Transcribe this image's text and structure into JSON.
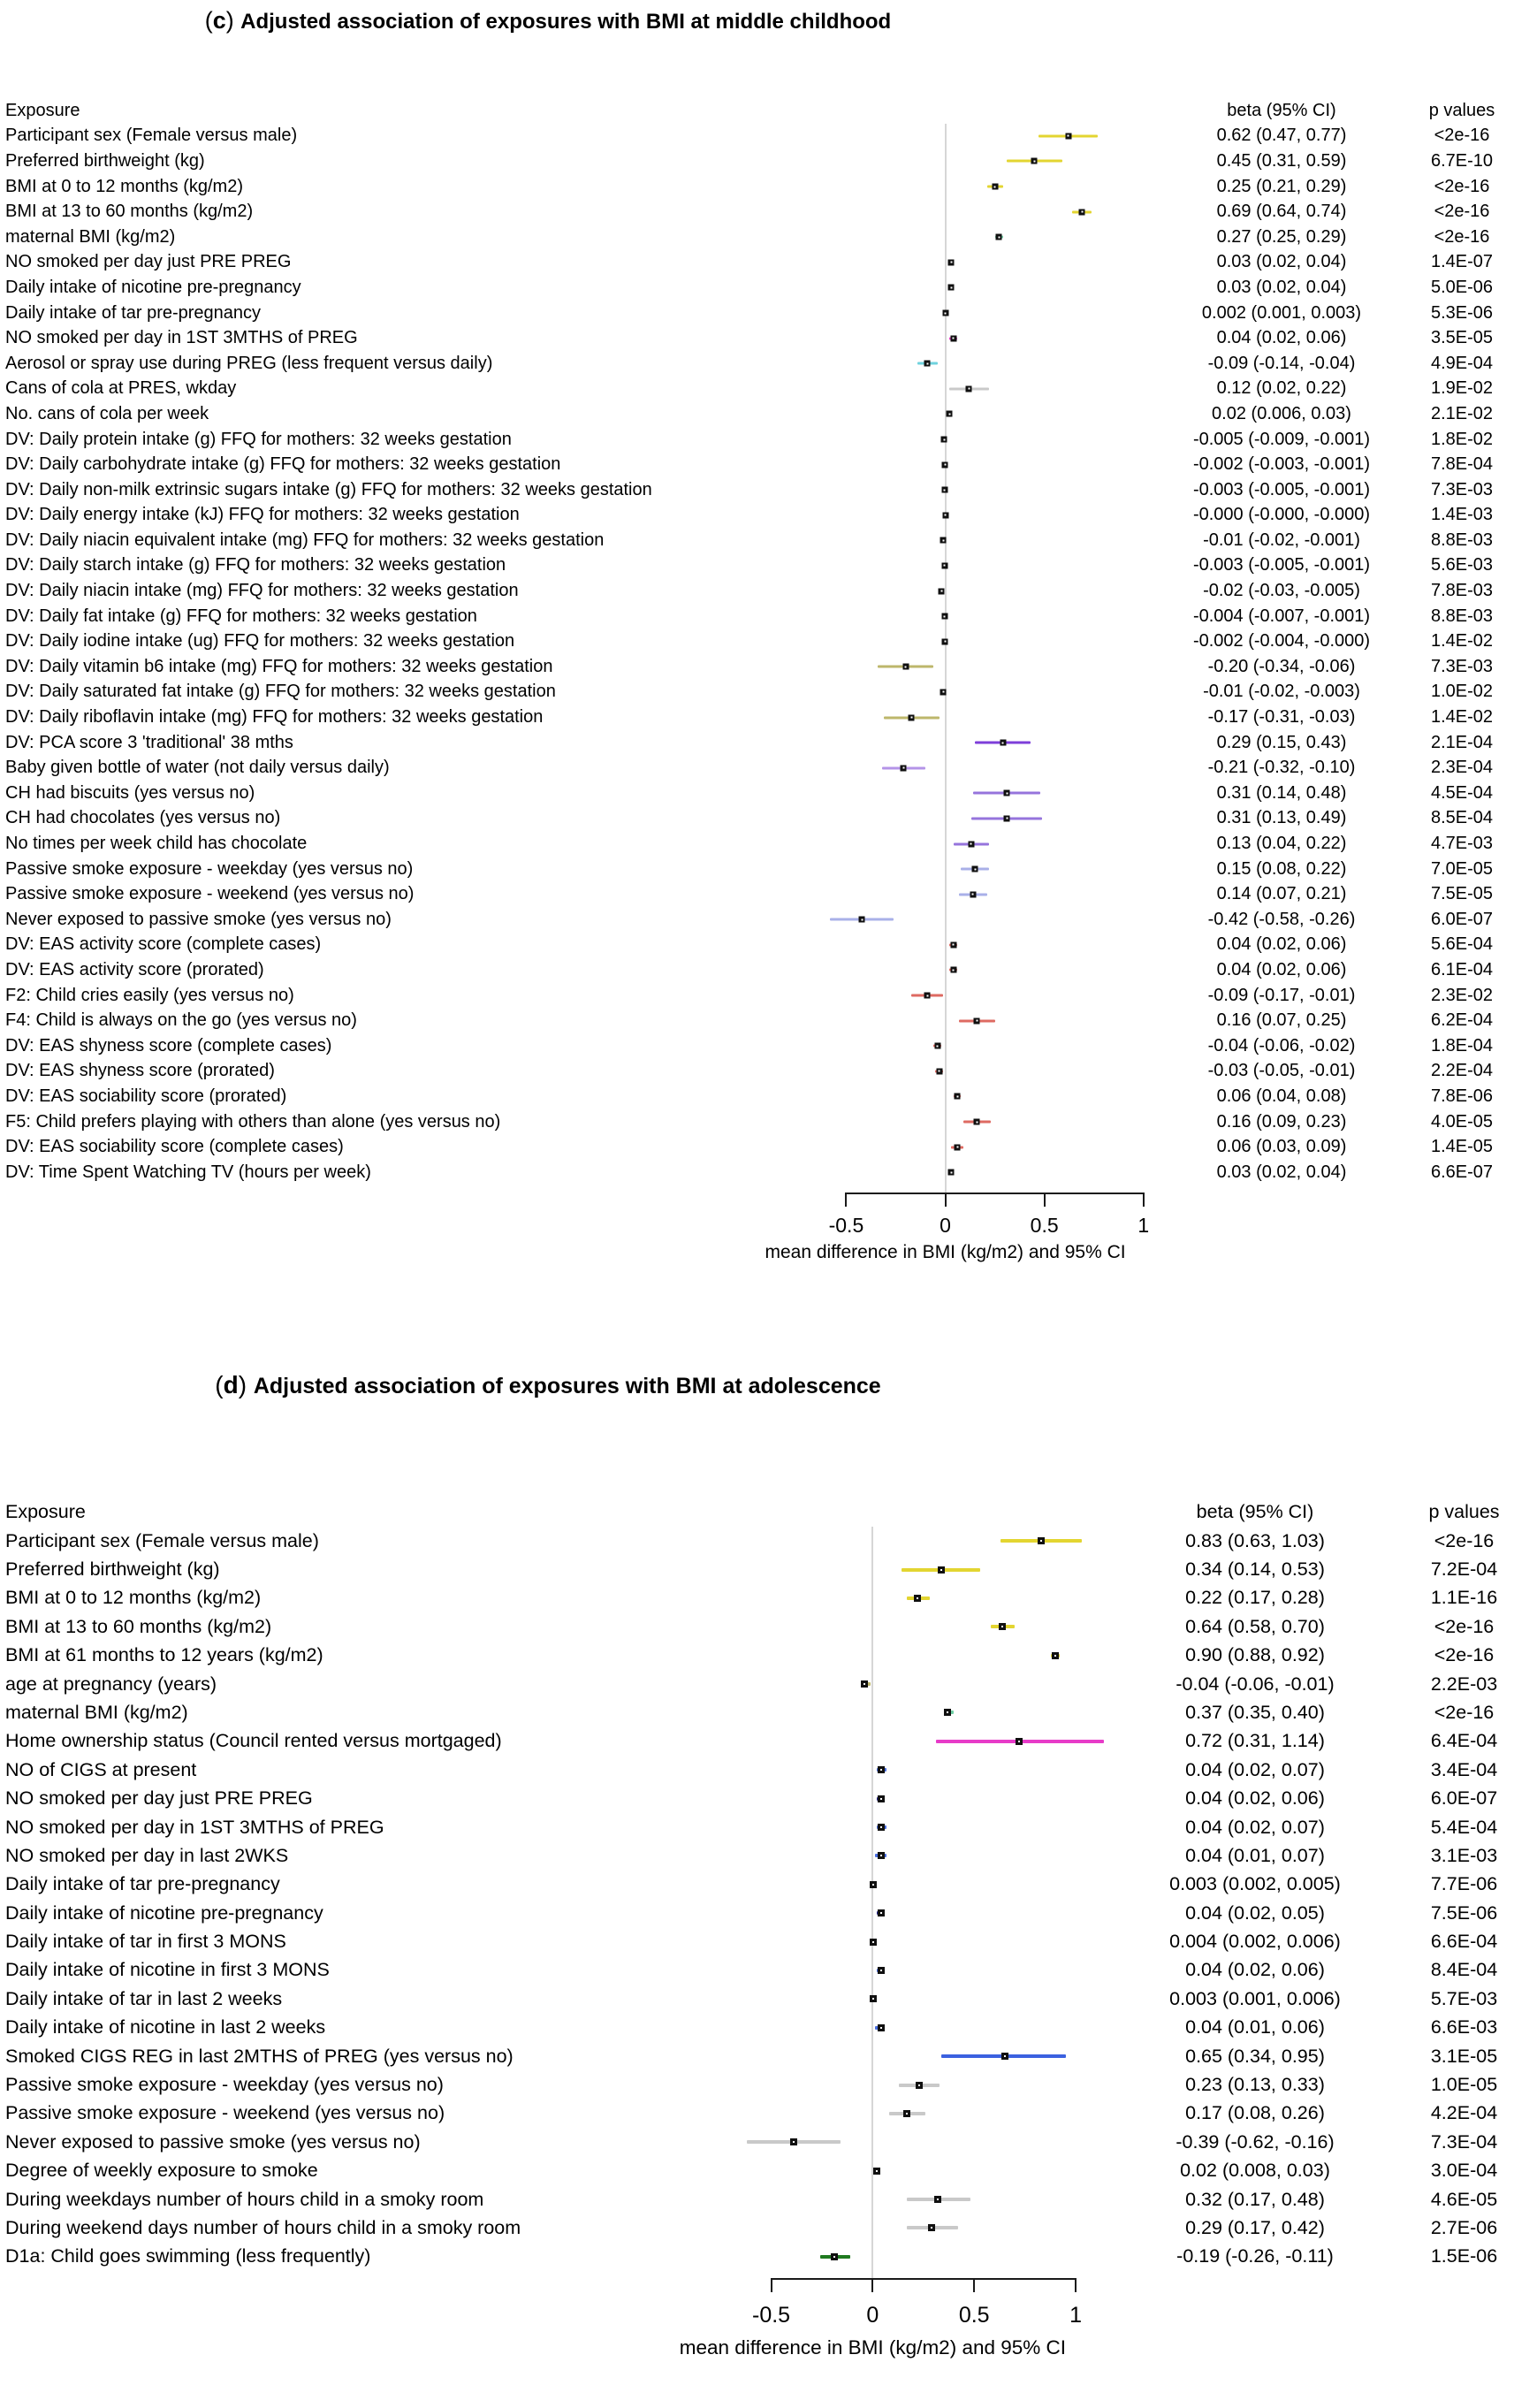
{
  "chart_data": [
    {
      "type": "scatter",
      "subtype": "forest-plot",
      "tag": "c",
      "title": "Adjusted association of exposures with BMI at middle childhood",
      "columns": {
        "exposure": "Exposure",
        "beta": "beta (95% CI)",
        "p": "p values"
      },
      "axis": {
        "xmin": -0.6,
        "xmax": 1.05,
        "ticks": [
          -0.5,
          0,
          0.5,
          1
        ],
        "tick_labels": [
          "-0.5",
          "0",
          "0.5",
          "1"
        ],
        "line_from": -0.5,
        "line_to": 1.0,
        "label": "mean difference in BMI (kg/m2) and 95% CI",
        "grid": false
      },
      "rows": [
        {
          "exposure": "Participant sex (Female versus male)",
          "beta": 0.62,
          "lo": 0.47,
          "hi": 0.77,
          "beta_text": "0.62 (0.47, 0.77)",
          "p": "<2e-16",
          "color": "#e3d531"
        },
        {
          "exposure": "Preferred birthweight (kg)",
          "beta": 0.45,
          "lo": 0.31,
          "hi": 0.59,
          "beta_text": "0.45 (0.31, 0.59)",
          "p": "6.7E-10",
          "color": "#e3d531"
        },
        {
          "exposure": "BMI at 0 to 12 months (kg/m2)",
          "beta": 0.25,
          "lo": 0.21,
          "hi": 0.29,
          "beta_text": "0.25 (0.21, 0.29)",
          "p": "<2e-16",
          "color": "#e3d531"
        },
        {
          "exposure": "BMI at 13 to 60 months (kg/m2)",
          "beta": 0.69,
          "lo": 0.64,
          "hi": 0.74,
          "beta_text": "0.69 (0.64, 0.74)",
          "p": "<2e-16",
          "color": "#e3d531"
        },
        {
          "exposure": "maternal BMI (kg/m2)",
          "beta": 0.27,
          "lo": 0.25,
          "hi": 0.29,
          "beta_text": "0.27 (0.25, 0.29)",
          "p": "<2e-16",
          "color": "#6ecfa4"
        },
        {
          "exposure": "NO smoked per day just PRE PREG",
          "beta": 0.03,
          "lo": 0.02,
          "hi": 0.04,
          "beta_text": "0.03 (0.02, 0.04)",
          "p": "1.4E-07",
          "color": "#e73bc8"
        },
        {
          "exposure": "Daily intake of nicotine pre-pregnancy",
          "beta": 0.03,
          "lo": 0.02,
          "hi": 0.04,
          "beta_text": "0.03 (0.02, 0.04)",
          "p": "5.0E-06",
          "color": "#e73bc8"
        },
        {
          "exposure": "Daily intake of tar pre-pregnancy",
          "beta": 0.002,
          "lo": 0.001,
          "hi": 0.003,
          "beta_text": "0.002 (0.001, 0.003)",
          "p": "5.3E-06",
          "color": "#141414"
        },
        {
          "exposure": "NO smoked per day in 1ST 3MTHS of PREG",
          "beta": 0.04,
          "lo": 0.02,
          "hi": 0.06,
          "beta_text": "0.04 (0.02, 0.06)",
          "p": "3.5E-05",
          "color": "#e73bc8"
        },
        {
          "exposure": "Aerosol or spray use during PREG (less frequent versus daily)",
          "beta": -0.09,
          "lo": -0.14,
          "hi": -0.04,
          "beta_text": "-0.09 (-0.14, -0.04)",
          "p": "4.9E-04",
          "color": "#6fd2de"
        },
        {
          "exposure": "Cans of cola at PRES, wkday",
          "beta": 0.12,
          "lo": 0.02,
          "hi": 0.22,
          "beta_text": "0.12 (0.02, 0.22)",
          "p": "1.9E-02",
          "color": "#c9c9c9"
        },
        {
          "exposure": "No. cans of cola per week",
          "beta": 0.02,
          "lo": 0.006,
          "hi": 0.03,
          "beta_text": "0.02 (0.006, 0.03)",
          "p": "2.1E-02",
          "color": "#141414"
        },
        {
          "exposure": "DV: Daily protein intake (g) FFQ for mothers: 32 weeks gestation",
          "beta": -0.005,
          "lo": -0.009,
          "hi": -0.001,
          "beta_text": "-0.005 (-0.009, -0.001)",
          "p": "1.8E-02",
          "color": "#141414"
        },
        {
          "exposure": "DV: Daily carbohydrate intake (g) FFQ for mothers: 32 weeks gestation",
          "beta": -0.002,
          "lo": -0.003,
          "hi": -0.001,
          "beta_text": "-0.002 (-0.003, -0.001)",
          "p": "7.8E-04",
          "color": "#141414"
        },
        {
          "exposure": "DV: Daily non-milk extrinsic sugars intake (g) FFQ for mothers: 32 weeks gestation",
          "beta": -0.003,
          "lo": -0.005,
          "hi": -0.001,
          "beta_text": "-0.003 (-0.005, -0.001)",
          "p": "7.3E-03",
          "color": "#141414"
        },
        {
          "exposure": "DV: Daily energy intake (kJ) FFQ for mothers: 32 weeks gestation",
          "beta": 0,
          "lo": 0,
          "hi": 0,
          "beta_text": "-0.000 (-0.000, -0.000)",
          "p": "1.4E-03",
          "color": "#141414"
        },
        {
          "exposure": "DV: Daily niacin equivalent intake (mg) FFQ for mothers: 32 weeks gestation",
          "beta": -0.01,
          "lo": -0.02,
          "hi": -0.001,
          "beta_text": "-0.01 (-0.02, -0.001)",
          "p": "8.8E-03",
          "color": "#141414"
        },
        {
          "exposure": "DV: Daily starch intake (g) FFQ for mothers: 32 weeks gestation",
          "beta": -0.003,
          "lo": -0.005,
          "hi": -0.001,
          "beta_text": "-0.003 (-0.005, -0.001)",
          "p": "5.6E-03",
          "color": "#141414"
        },
        {
          "exposure": "DV: Daily niacin intake (mg) FFQ for mothers: 32 weeks gestation",
          "beta": -0.02,
          "lo": -0.03,
          "hi": -0.005,
          "beta_text": "-0.02 (-0.03, -0.005)",
          "p": "7.8E-03",
          "color": "#141414"
        },
        {
          "exposure": "DV: Daily fat intake (g) FFQ for mothers: 32 weeks gestation",
          "beta": -0.004,
          "lo": -0.007,
          "hi": -0.001,
          "beta_text": "-0.004 (-0.007, -0.001)",
          "p": "8.8E-03",
          "color": "#141414"
        },
        {
          "exposure": "DV: Daily iodine intake (ug) FFQ for mothers: 32 weeks gestation",
          "beta": -0.002,
          "lo": -0.004,
          "hi": 0,
          "beta_text": "-0.002 (-0.004, -0.000)",
          "p": "1.4E-02",
          "color": "#141414"
        },
        {
          "exposure": "DV: Daily vitamin b6 intake (mg) FFQ for mothers: 32 weeks gestation",
          "beta": -0.2,
          "lo": -0.34,
          "hi": -0.06,
          "beta_text": "-0.20 (-0.34, -0.06)",
          "p": "7.3E-03",
          "color": "#bdb76b"
        },
        {
          "exposure": "DV: Daily saturated fat intake (g) FFQ for mothers: 32 weeks gestation",
          "beta": -0.01,
          "lo": -0.02,
          "hi": -0.003,
          "beta_text": "-0.01 (-0.02, -0.003)",
          "p": "1.0E-02",
          "color": "#141414"
        },
        {
          "exposure": "DV: Daily riboflavin intake (mg) FFQ for mothers: 32 weeks gestation",
          "beta": -0.17,
          "lo": -0.31,
          "hi": -0.03,
          "beta_text": "-0.17 (-0.31, -0.03)",
          "p": "1.4E-02",
          "color": "#bdb76b"
        },
        {
          "exposure": "DV: PCA score 3 'traditional' 38 mths",
          "beta": 0.29,
          "lo": 0.15,
          "hi": 0.43,
          "beta_text": "0.29 (0.15, 0.43)",
          "p": "2.1E-04",
          "color": "#7e3ed9"
        },
        {
          "exposure": "Baby given bottle of water (not daily versus daily)",
          "beta": -0.21,
          "lo": -0.32,
          "hi": -0.1,
          "beta_text": "-0.21 (-0.32, -0.10)",
          "p": "2.3E-04",
          "color": "#b494e8"
        },
        {
          "exposure": "CH had biscuits (yes versus no)",
          "beta": 0.31,
          "lo": 0.14,
          "hi": 0.48,
          "beta_text": "0.31 (0.14, 0.48)",
          "p": "4.5E-04",
          "color": "#9674dc"
        },
        {
          "exposure": "CH had chocolates (yes versus no)",
          "beta": 0.31,
          "lo": 0.13,
          "hi": 0.49,
          "beta_text": "0.31 (0.13, 0.49)",
          "p": "8.5E-04",
          "color": "#9674dc"
        },
        {
          "exposure": "No times per week child has chocolate",
          "beta": 0.13,
          "lo": 0.04,
          "hi": 0.22,
          "beta_text": "0.13 (0.04, 0.22)",
          "p": "4.7E-03",
          "color": "#9674dc"
        },
        {
          "exposure": "Passive smoke exposure - weekday (yes versus no)",
          "beta": 0.15,
          "lo": 0.08,
          "hi": 0.22,
          "beta_text": "0.15 (0.08, 0.22)",
          "p": "7.0E-05",
          "color": "#a9b0e8"
        },
        {
          "exposure": "Passive smoke exposure - weekend (yes versus no)",
          "beta": 0.14,
          "lo": 0.07,
          "hi": 0.21,
          "beta_text": "0.14 (0.07, 0.21)",
          "p": "7.5E-05",
          "color": "#a9b0e8"
        },
        {
          "exposure": "Never exposed to passive smoke (yes versus no)",
          "beta": -0.42,
          "lo": -0.58,
          "hi": -0.26,
          "beta_text": "-0.42 (-0.58, -0.26)",
          "p": "6.0E-07",
          "color": "#a9b0e8"
        },
        {
          "exposure": "DV: EAS activity score (complete cases)",
          "beta": 0.04,
          "lo": 0.02,
          "hi": 0.06,
          "beta_text": "0.04 (0.02, 0.06)",
          "p": "5.6E-04",
          "color": "#de6a62"
        },
        {
          "exposure": "DV: EAS activity score (prorated)",
          "beta": 0.04,
          "lo": 0.02,
          "hi": 0.06,
          "beta_text": "0.04 (0.02, 0.06)",
          "p": "6.1E-04",
          "color": "#de6a62"
        },
        {
          "exposure": "F2: Child cries easily (yes versus no)",
          "beta": -0.09,
          "lo": -0.17,
          "hi": -0.01,
          "beta_text": "-0.09 (-0.17, -0.01)",
          "p": "2.3E-02",
          "color": "#de6a62"
        },
        {
          "exposure": "F4: Child is always on the go (yes versus no)",
          "beta": 0.16,
          "lo": 0.07,
          "hi": 0.25,
          "beta_text": "0.16 (0.07, 0.25)",
          "p": "6.2E-04",
          "color": "#de6a62"
        },
        {
          "exposure": "DV: EAS shyness score (complete cases)",
          "beta": -0.04,
          "lo": -0.06,
          "hi": -0.02,
          "beta_text": "-0.04 (-0.06, -0.02)",
          "p": "1.8E-04",
          "color": "#de6a62"
        },
        {
          "exposure": "DV: EAS shyness score (prorated)",
          "beta": -0.03,
          "lo": -0.05,
          "hi": -0.01,
          "beta_text": "-0.03 (-0.05, -0.01)",
          "p": "2.2E-04",
          "color": "#de6a62"
        },
        {
          "exposure": "DV: EAS sociability score (prorated)",
          "beta": 0.06,
          "lo": 0.04,
          "hi": 0.08,
          "beta_text": "0.06 (0.04, 0.08)",
          "p": "7.8E-06",
          "color": "#de6a62"
        },
        {
          "exposure": "F5: Child prefers playing with others than alone (yes versus no)",
          "beta": 0.16,
          "lo": 0.09,
          "hi": 0.23,
          "beta_text": "0.16 (0.09, 0.23)",
          "p": "4.0E-05",
          "color": "#de6a62"
        },
        {
          "exposure": "DV: EAS sociability score (complete cases)",
          "beta": 0.06,
          "lo": 0.03,
          "hi": 0.09,
          "beta_text": "0.06 (0.03, 0.09)",
          "p": "1.4E-05",
          "color": "#de6a62"
        },
        {
          "exposure": "DV: Time Spent Watching TV (hours per week)",
          "beta": 0.03,
          "lo": 0.02,
          "hi": 0.04,
          "beta_text": "0.03 (0.02, 0.04)",
          "p": "6.6E-07",
          "color": "#2e8b2e"
        }
      ]
    },
    {
      "type": "scatter",
      "subtype": "forest-plot",
      "tag": "d",
      "title": "Adjusted association of exposures with BMI at adolescence",
      "columns": {
        "exposure": "Exposure",
        "beta": "beta (95% CI)",
        "p": "p values"
      },
      "axis": {
        "xmin": -0.62,
        "xmax": 1.1,
        "ticks": [
          -0.5,
          0,
          0.5,
          1
        ],
        "tick_labels": [
          "-0.5",
          "0",
          "0.5",
          "1"
        ],
        "line_from": -0.5,
        "line_to": 1.0,
        "label": "mean difference in BMI (kg/m2) and 95% CI",
        "grid": false
      },
      "rows": [
        {
          "exposure": "Participant sex (Female versus male)",
          "beta": 0.83,
          "lo": 0.63,
          "hi": 1.03,
          "beta_text": "0.83 (0.63, 1.03)",
          "p": "<2e-16",
          "color": "#e3d531"
        },
        {
          "exposure": "Preferred birthweight (kg)",
          "beta": 0.34,
          "lo": 0.14,
          "hi": 0.53,
          "beta_text": "0.34 (0.14, 0.53)",
          "p": "7.2E-04",
          "color": "#e3d531"
        },
        {
          "exposure": "BMI at 0 to 12 months (kg/m2)",
          "beta": 0.22,
          "lo": 0.17,
          "hi": 0.28,
          "beta_text": "0.22 (0.17, 0.28)",
          "p": "1.1E-16",
          "color": "#e3d531"
        },
        {
          "exposure": "BMI at 13 to 60 months (kg/m2)",
          "beta": 0.64,
          "lo": 0.58,
          "hi": 0.7,
          "beta_text": "0.64 (0.58, 0.70)",
          "p": "<2e-16",
          "color": "#e3d531"
        },
        {
          "exposure": "BMI at 61 months to 12 years (kg/m2)",
          "beta": 0.9,
          "lo": 0.88,
          "hi": 0.92,
          "beta_text": "0.90 (0.88, 0.92)",
          "p": "<2e-16",
          "color": "#e3d531"
        },
        {
          "exposure": "age at pregnancy (years)",
          "beta": -0.04,
          "lo": -0.06,
          "hi": -0.01,
          "beta_text": "-0.04 (-0.06, -0.01)",
          "p": "2.2E-03",
          "color": "#bdb76b"
        },
        {
          "exposure": "maternal BMI (kg/m2)",
          "beta": 0.37,
          "lo": 0.35,
          "hi": 0.4,
          "beta_text": "0.37 (0.35, 0.40)",
          "p": "<2e-16",
          "color": "#6ecfa4"
        },
        {
          "exposure": "Home ownership status (Council rented versus mortgaged)",
          "beta": 0.72,
          "lo": 0.31,
          "hi": 1.14,
          "beta_text": "0.72 (0.31, 1.14)",
          "p": "6.4E-04",
          "color": "#e73bc8"
        },
        {
          "exposure": "NO of CIGS at present",
          "beta": 0.04,
          "lo": 0.02,
          "hi": 0.07,
          "beta_text": "0.04 (0.02, 0.07)",
          "p": "3.4E-04",
          "color": "#4a6ee0"
        },
        {
          "exposure": "NO smoked per day just PRE PREG",
          "beta": 0.04,
          "lo": 0.02,
          "hi": 0.06,
          "beta_text": "0.04 (0.02, 0.06)",
          "p": "6.0E-07",
          "color": "#26268f"
        },
        {
          "exposure": "NO smoked per day in 1ST 3MTHS of PREG",
          "beta": 0.04,
          "lo": 0.02,
          "hi": 0.07,
          "beta_text": "0.04 (0.02, 0.07)",
          "p": "5.4E-04",
          "color": "#4a6ee0"
        },
        {
          "exposure": "NO smoked per day in last 2WKS",
          "beta": 0.04,
          "lo": 0.01,
          "hi": 0.07,
          "beta_text": "0.04 (0.01, 0.07)",
          "p": "3.1E-03",
          "color": "#4a6ee0"
        },
        {
          "exposure": "Daily intake of tar pre-pregnancy",
          "beta": 0.003,
          "lo": 0.002,
          "hi": 0.005,
          "beta_text": "0.003 (0.002, 0.005)",
          "p": "7.7E-06",
          "color": "#26268f"
        },
        {
          "exposure": "Daily intake of nicotine pre-pregnancy",
          "beta": 0.04,
          "lo": 0.02,
          "hi": 0.05,
          "beta_text": "0.04 (0.02, 0.05)",
          "p": "7.5E-06",
          "color": "#26268f"
        },
        {
          "exposure": "Daily intake of tar in first 3 MONS",
          "beta": 0.004,
          "lo": 0.002,
          "hi": 0.006,
          "beta_text": "0.004 (0.002, 0.006)",
          "p": "6.6E-04",
          "color": "#26268f"
        },
        {
          "exposure": "Daily intake of nicotine in first 3 MONS",
          "beta": 0.04,
          "lo": 0.02,
          "hi": 0.06,
          "beta_text": "0.04 (0.02, 0.06)",
          "p": "8.4E-04",
          "color": "#4a6ee0"
        },
        {
          "exposure": "Daily intake of tar in last 2 weeks",
          "beta": 0.003,
          "lo": 0.001,
          "hi": 0.006,
          "beta_text": "0.003 (0.001, 0.006)",
          "p": "5.7E-03",
          "color": "#26268f"
        },
        {
          "exposure": "Daily intake of nicotine in last 2 weeks",
          "beta": 0.04,
          "lo": 0.01,
          "hi": 0.06,
          "beta_text": "0.04 (0.01, 0.06)",
          "p": "6.6E-03",
          "color": "#4a6ee0"
        },
        {
          "exposure": "Smoked CIGS REG in last 2MTHS of PREG (yes versus no)",
          "beta": 0.65,
          "lo": 0.34,
          "hi": 0.95,
          "beta_text": "0.65 (0.34, 0.95)",
          "p": "3.1E-05",
          "color": "#3b61e0"
        },
        {
          "exposure": "Passive smoke exposure - weekday (yes versus no)",
          "beta": 0.23,
          "lo": 0.13,
          "hi": 0.33,
          "beta_text": "0.23 (0.13, 0.33)",
          "p": "1.0E-05",
          "color": "#c9c9c9"
        },
        {
          "exposure": "Passive smoke exposure - weekend (yes versus no)",
          "beta": 0.17,
          "lo": 0.08,
          "hi": 0.26,
          "beta_text": "0.17 (0.08, 0.26)",
          "p": "4.2E-04",
          "color": "#c9c9c9"
        },
        {
          "exposure": "Never exposed to passive smoke (yes versus no)",
          "beta": -0.39,
          "lo": -0.62,
          "hi": -0.16,
          "beta_text": "-0.39 (-0.62, -0.16)",
          "p": "7.3E-04",
          "color": "#c9c9c9"
        },
        {
          "exposure": "Degree of weekly exposure to smoke",
          "beta": 0.02,
          "lo": 0.008,
          "hi": 0.03,
          "beta_text": "0.02 (0.008, 0.03)",
          "p": "3.0E-04",
          "color": "#141414"
        },
        {
          "exposure": "During weekdays number of hours child in a smoky room",
          "beta": 0.32,
          "lo": 0.17,
          "hi": 0.48,
          "beta_text": "0.32 (0.17, 0.48)",
          "p": "4.6E-05",
          "color": "#c9c9c9"
        },
        {
          "exposure": "During weekend days number of hours child in a smoky room",
          "beta": 0.29,
          "lo": 0.17,
          "hi": 0.42,
          "beta_text": "0.29 (0.17, 0.42)",
          "p": "2.7E-06",
          "color": "#c9c9c9"
        },
        {
          "exposure": "D1a: Child goes swimming (less frequently)",
          "beta": -0.19,
          "lo": -0.26,
          "hi": -0.11,
          "beta_text": "-0.19 (-0.26, -0.11)",
          "p": "1.5E-06",
          "color": "#1f7a1f"
        }
      ]
    }
  ],
  "colors": {
    "zero_line": "#d6d6d6",
    "axis": "#1a1a1a",
    "point": "#101010"
  }
}
